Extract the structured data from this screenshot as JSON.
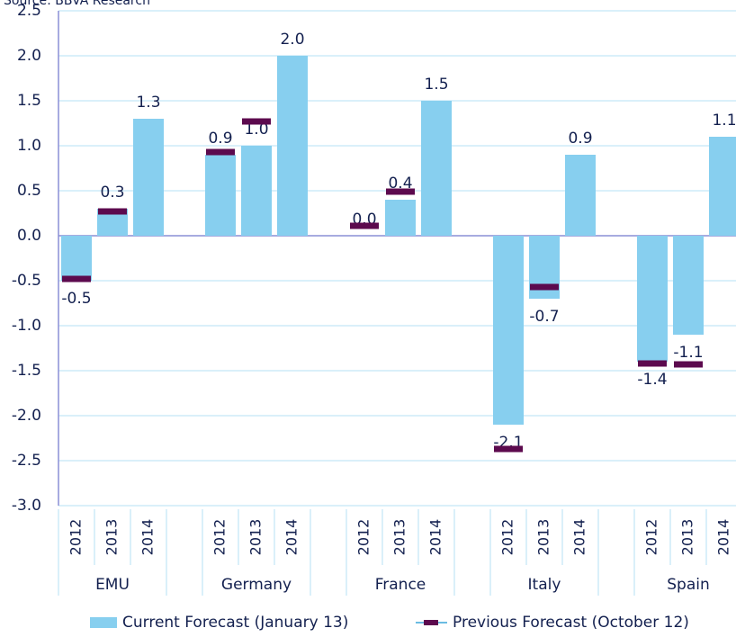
{
  "chart_data": {
    "type": "bar",
    "source": "Source: BBVA Research",
    "groups": [
      "EMU",
      "Germany",
      "France",
      "Italy",
      "Spain"
    ],
    "categories": [
      "2012",
      "2013",
      "2014",
      "2012",
      "2013",
      "2014",
      "2012",
      "2013",
      "2014",
      "2012",
      "2013",
      "2014",
      "2012",
      "2013",
      "2014"
    ],
    "series": [
      {
        "name": "Current Forecast (January 13)",
        "color": "#87cfef",
        "values": [
          -0.5,
          0.3,
          1.3,
          0.9,
          1.0,
          2.0,
          0.0,
          0.4,
          1.5,
          -2.1,
          -0.7,
          0.9,
          -1.4,
          -1.1,
          1.1
        ],
        "value_labels": [
          "-0.5",
          "0.3",
          "1.3",
          "0.9",
          "1.0",
          "2.0",
          "0.0",
          "0.4",
          "1.5",
          "-2.1",
          "-0.7",
          "0.9",
          "-1.4",
          "-1.1",
          "1.1"
        ]
      },
      {
        "name": "Previous Forecast (October 12)",
        "color": "#5c0a4e",
        "values": [
          -0.48,
          0.27,
          null,
          0.93,
          1.27,
          null,
          0.11,
          0.49,
          null,
          -2.37,
          -0.57,
          null,
          -1.42,
          -1.43,
          null
        ]
      }
    ],
    "ylim": [
      -3.0,
      2.5
    ],
    "yticks": [
      {
        "value": -3,
        "label": "-3.0"
      },
      -2.5,
      {
        "value": -2,
        "label": "-2.0"
      },
      -1.5,
      {
        "value": -1,
        "label": "-1.0"
      },
      -0.5,
      {
        "value": 0,
        "label": "0.0"
      },
      0.5,
      {
        "value": 1,
        "label": "1.0"
      },
      1.5,
      {
        "value": 2,
        "label": "2.0"
      },
      2.5
    ],
    "grid": true
  }
}
